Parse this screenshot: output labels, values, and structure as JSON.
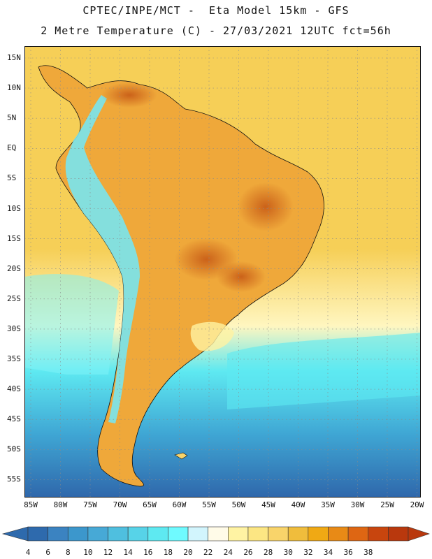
{
  "title": {
    "line1": "CPTEC/INPE/MCT -  Eta Model 15km - GFS",
    "line2": "2 Metre Temperature (C) - 27/03/2021 12UTC fct=56h"
  },
  "lat_labels": [
    "15N",
    "10N",
    "5N",
    "EQ",
    "5S",
    "10S",
    "15S",
    "20S",
    "25S",
    "30S",
    "35S",
    "40S",
    "45S",
    "50S",
    "55S"
  ],
  "lon_labels": [
    "85W",
    "80W",
    "75W",
    "70W",
    "65W",
    "60W",
    "55W",
    "50W",
    "45W",
    "40W",
    "35W",
    "30W",
    "25W",
    "20W"
  ],
  "colorbar": {
    "labels": [
      "4",
      "6",
      "8",
      "10",
      "12",
      "14",
      "16",
      "18",
      "20",
      "22",
      "24",
      "26",
      "28",
      "30",
      "32",
      "34",
      "36",
      "38"
    ],
    "colors": [
      "#2e6aad",
      "#3b83c1",
      "#3c97cc",
      "#47a9d6",
      "#4fbfdf",
      "#57d3e8",
      "#5ee9f1",
      "#6ffaff",
      "#d2f5fd",
      "#fffbe8",
      "#fff3a3",
      "#fce683",
      "#f9d46a",
      "#f0bd3c",
      "#f0a914",
      "#e88a16",
      "#de6613",
      "#c8450e",
      "#b9380d"
    ],
    "min_color": "#2e6aad",
    "max_color": "#b9380d"
  },
  "map": {
    "ocean_warm": "#f6cf57",
    "ocean_mid": "#fff6c0",
    "ocean_cool": "#5ee9f1",
    "ocean_cold": "#2f67ab",
    "land": "#efa83a",
    "land_hot": "#d06a1a",
    "andes": "#78e4f0"
  }
}
